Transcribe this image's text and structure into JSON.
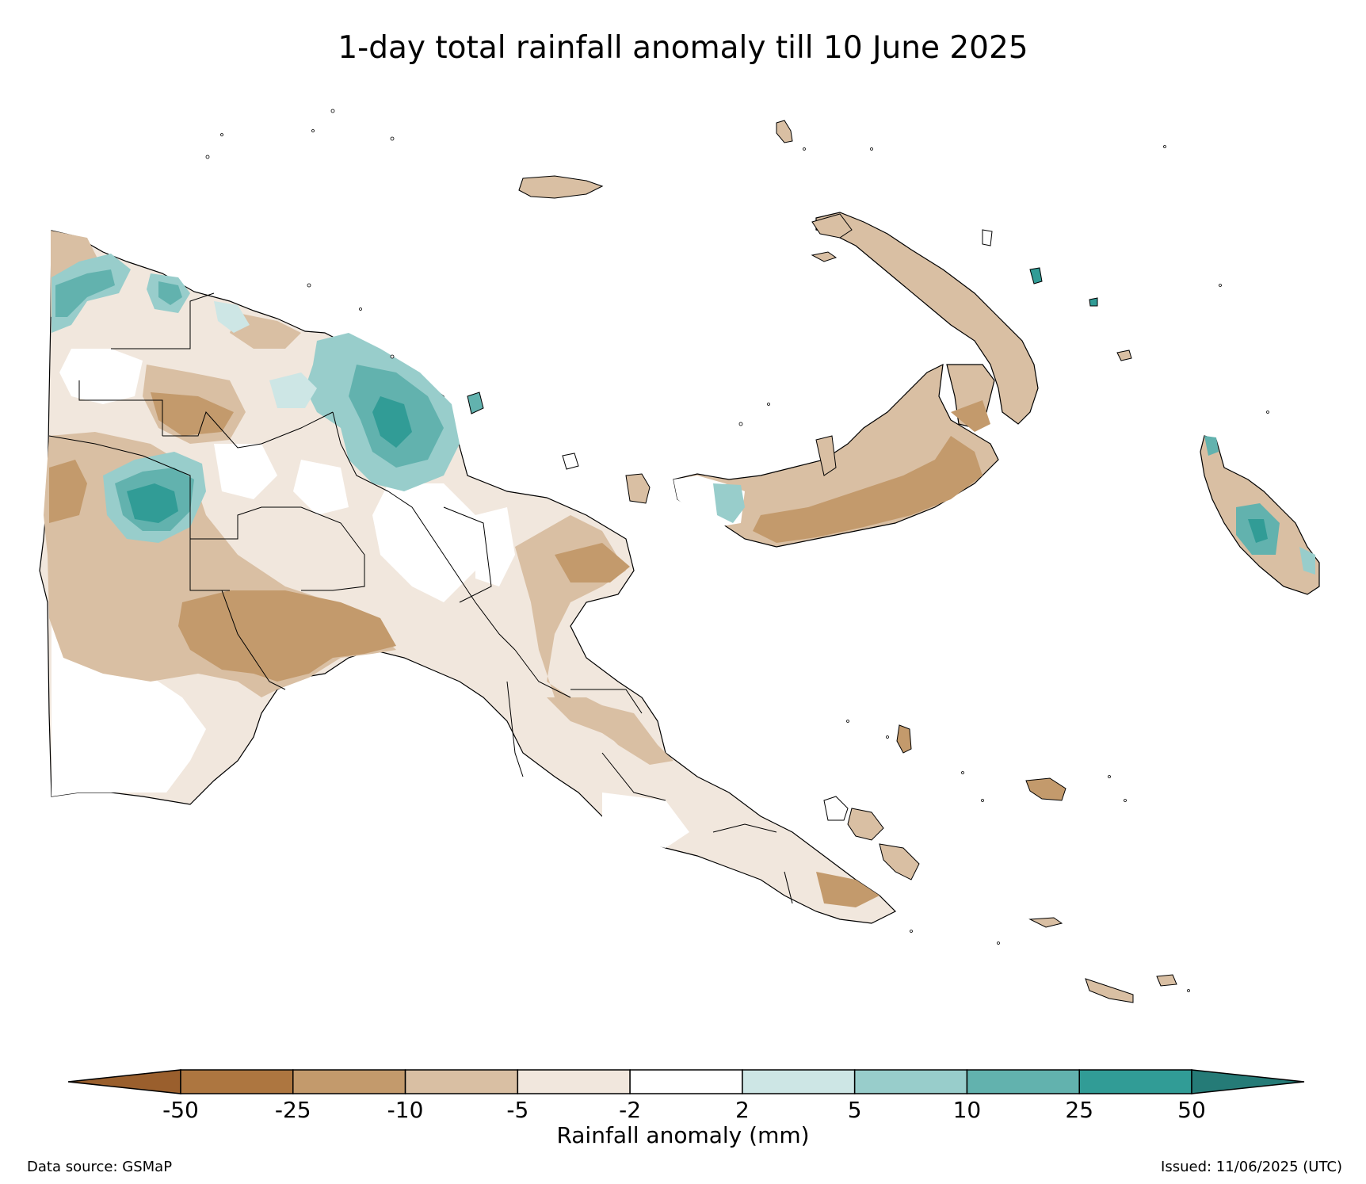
{
  "title": "1-day total rainfall anomaly till 10 June 2025",
  "colorbar": {
    "label": "Rainfall anomaly (mm)",
    "ticks": [
      "-50",
      "-25",
      "-10",
      "-5",
      "-2",
      "2",
      "5",
      "10",
      "25",
      "50"
    ],
    "colors": [
      "#9a5f2d",
      "#ad7640",
      "#c39a6c",
      "#d9bfa3",
      "#f1e7dd",
      "#ffffff",
      "#cde6e5",
      "#98cdcb",
      "#62b2ae",
      "#319c96",
      "#257b77"
    ]
  },
  "footer": {
    "source": "Data source: GSMaP",
    "issued": "Issued: 11/06/2025 (UTC)"
  }
}
